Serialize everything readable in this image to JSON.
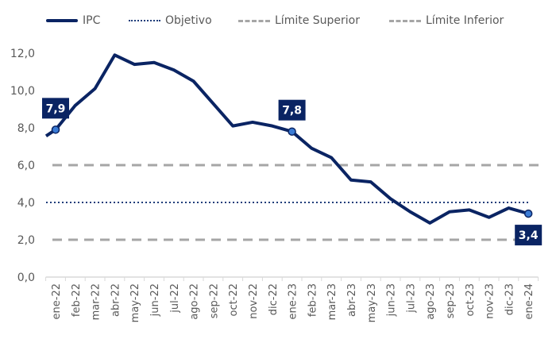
{
  "chart_data": {
    "type": "line",
    "title": "",
    "xlabel": "",
    "ylabel": "",
    "ylim": [
      0,
      12
    ],
    "yticks": [
      "0,0",
      "2,0",
      "4,0",
      "6,0",
      "8,0",
      "10,0",
      "12,0"
    ],
    "ytick_values": [
      0,
      2,
      4,
      6,
      8,
      10,
      12
    ],
    "grid": false,
    "legend_position": "top",
    "categories": [
      "ene-22",
      "feb-22",
      "mar-22",
      "abr-22",
      "may-22",
      "jun-22",
      "jul-22",
      "ago-22",
      "sep-22",
      "oct-22",
      "nov-22",
      "dic-22",
      "ene-23",
      "feb-23",
      "mar-23",
      "abr-23",
      "may-23",
      "jun-23",
      "jul-23",
      "ago-23",
      "sep-23",
      "oct-23",
      "nov-23",
      "dic-23",
      "ene-24"
    ],
    "lead_in_value": 7.2,
    "series": [
      {
        "name": "IPC",
        "style": "solid",
        "color": "#0a2463",
        "values": [
          7.9,
          9.2,
          10.1,
          11.9,
          11.4,
          11.5,
          11.1,
          10.5,
          9.3,
          8.1,
          8.3,
          8.1,
          7.8,
          6.9,
          6.4,
          5.2,
          5.1,
          4.2,
          3.5,
          2.9,
          3.5,
          3.6,
          3.2,
          3.7,
          3.4
        ]
      },
      {
        "name": "Objetivo",
        "style": "dotted",
        "color": "#1f3d7a",
        "constant": 4.0
      },
      {
        "name": "Límite Superior",
        "style": "dashed",
        "color": "#a6a6a6",
        "constant": 6.0
      },
      {
        "name": "Límite Inferior",
        "style": "dashed",
        "color": "#a6a6a6",
        "constant": 2.0
      }
    ],
    "annotations": [
      {
        "category": "ene-22",
        "value": 7.9,
        "label": "7,9",
        "position": "above"
      },
      {
        "category": "ene-23",
        "value": 7.8,
        "label": "7,8",
        "position": "above"
      },
      {
        "category": "ene-24",
        "value": 3.4,
        "label": "3,4",
        "position": "below"
      }
    ],
    "colors": {
      "ipc": "#0a2463",
      "marker": "#3a7bd5",
      "label_bg": "#0a2463",
      "limits": "#a6a6a6",
      "axis": "#d9d9d9",
      "text": "#595959"
    }
  },
  "legend": {
    "items": [
      {
        "label": "IPC"
      },
      {
        "label": "Objetivo"
      },
      {
        "label": "Límite Superior"
      },
      {
        "label": "Límite Inferior"
      }
    ]
  }
}
